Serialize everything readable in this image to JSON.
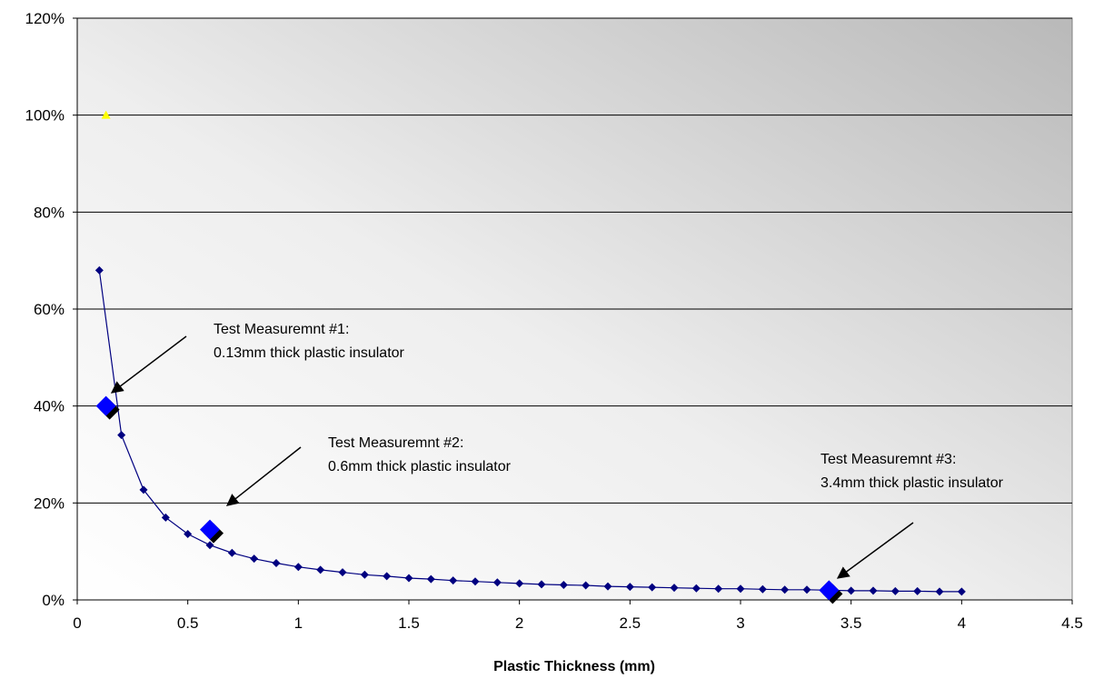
{
  "chart_data": {
    "type": "scatter",
    "title": "",
    "xlabel": "Plastic Thickness (mm)",
    "ylabel": "",
    "xlim": [
      0,
      4.5
    ],
    "ylim": [
      0,
      1.2
    ],
    "x_ticks": [
      "0",
      "0.5",
      "1",
      "1.5",
      "2",
      "2.5",
      "3",
      "3.5",
      "4",
      "4.5"
    ],
    "x_tick_values": [
      0,
      0.5,
      1,
      1.5,
      2,
      2.5,
      3,
      3.5,
      4,
      4.5
    ],
    "y_ticks": [
      "0%",
      "20%",
      "40%",
      "60%",
      "80%",
      "100%",
      "120%"
    ],
    "y_tick_values": [
      0,
      0.2,
      0.4,
      0.6,
      0.8,
      1.0,
      1.2
    ],
    "grid": "horizontal",
    "legend": "none",
    "series": [
      {
        "kind": "line-markers",
        "color": "#000080",
        "x": [
          0.1,
          0.2,
          0.3,
          0.4,
          0.5,
          0.6,
          0.7,
          0.8,
          0.9,
          1.0,
          1.1,
          1.2,
          1.3,
          1.4,
          1.5,
          1.6,
          1.7,
          1.8,
          1.9,
          2.0,
          2.1,
          2.2,
          2.3,
          2.4,
          2.5,
          2.6,
          2.7,
          2.8,
          2.9,
          3.0,
          3.1,
          3.2,
          3.3,
          3.4,
          3.5,
          3.6,
          3.7,
          3.8,
          3.9,
          4.0
        ],
        "y": [
          0.68,
          0.34,
          0.227,
          0.17,
          0.136,
          0.113,
          0.097,
          0.085,
          0.076,
          0.068,
          0.062,
          0.057,
          0.052,
          0.049,
          0.045,
          0.043,
          0.04,
          0.038,
          0.036,
          0.034,
          0.032,
          0.031,
          0.03,
          0.028,
          0.027,
          0.026,
          0.025,
          0.024,
          0.023,
          0.023,
          0.022,
          0.021,
          0.021,
          0.02,
          0.019,
          0.019,
          0.018,
          0.018,
          0.017,
          0.017
        ]
      },
      {
        "kind": "test-measurements",
        "color": "#0000ff",
        "x": [
          0.13,
          0.6,
          3.4
        ],
        "y": [
          0.4,
          0.145,
          0.02
        ]
      },
      {
        "kind": "reference-point",
        "color": "#ffff00",
        "x": [
          0.13
        ],
        "y": [
          1.0
        ]
      }
    ],
    "annotations": [
      {
        "line1": "Test Measuremnt #1:",
        "line2": "0.13mm thick plastic insulator"
      },
      {
        "line1": "Test Measuremnt #2:",
        "line2": "0.6mm thick plastic insulator"
      },
      {
        "line1": "Test Measuremnt #3:",
        "line2": "3.4mm thick plastic insulator"
      }
    ]
  }
}
